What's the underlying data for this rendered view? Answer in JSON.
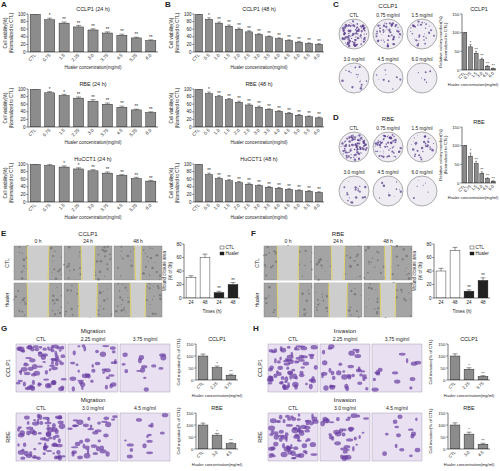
{
  "chart_data": [
    {
      "type": "bar",
      "title": "CCLP1 (24 h)",
      "x_label": "Hualer concentration(mg/ml)",
      "y_label": [
        "Cell viability(%)",
        "(Normalized to CTL)"
      ],
      "categories": [
        "CTL",
        "0.75",
        "1.5",
        "2.25",
        "3.0",
        "3.75",
        "4.5",
        "5.25",
        "6.0"
      ],
      "values": [
        100,
        85,
        76,
        66,
        58,
        50,
        44,
        37,
        30
      ],
      "errors": [
        0,
        4,
        3,
        4,
        3,
        3,
        3,
        2,
        2
      ],
      "annotations": [
        null,
        "*",
        "**",
        "**",
        "**",
        "**",
        "**",
        "**",
        "**"
      ],
      "color": "#8c8c8c",
      "ylim": [
        0,
        100
      ],
      "yticks": [
        0,
        20,
        40,
        60,
        80,
        100
      ]
    },
    {
      "type": "bar",
      "title": "RBE (24 h)",
      "x_label": "Hualer concentration(mg/ml)",
      "y_label": [
        "Cell viability(%)",
        "(Normalized to CTL)"
      ],
      "categories": [
        "CTL",
        "0.75",
        "1.5",
        "2.25",
        "3.0",
        "3.75",
        "4.5",
        "5.25",
        "6.0"
      ],
      "values": [
        100,
        90,
        83,
        76,
        68,
        60,
        52,
        45,
        38
      ],
      "errors": [
        0,
        3,
        3,
        3,
        4,
        3,
        3,
        2,
        2
      ],
      "annotations": [
        null,
        "*",
        "*",
        "**",
        "**",
        "**",
        "**",
        "**",
        "**"
      ],
      "color": "#8c8c8c",
      "ylim": [
        0,
        100
      ],
      "yticks": [
        0,
        20,
        40,
        60,
        80,
        100
      ]
    },
    {
      "type": "bar",
      "title": "HuCCT1 (24 h)",
      "x_label": "Hualer concentration(mg/ml)",
      "y_label": [
        "Cell viability(%)",
        "(Normalized to CTL)"
      ],
      "categories": [
        "CTL",
        "0.75",
        "1.5",
        "2.25",
        "3.0",
        "3.75",
        "4.5",
        "5.25",
        "6.0"
      ],
      "values": [
        100,
        96,
        92,
        87,
        82,
        76,
        70,
        62,
        55
      ],
      "errors": [
        0,
        3,
        3,
        3,
        3,
        3,
        2,
        3,
        2
      ],
      "annotations": [
        null,
        null,
        "*",
        "*",
        "**",
        "**",
        "**",
        "**",
        "**"
      ],
      "color": "#8c8c8c",
      "ylim": [
        0,
        100
      ],
      "yticks": [
        0,
        20,
        40,
        60,
        80,
        100
      ]
    },
    {
      "type": "bar",
      "title": "CCLP1 (48 h)",
      "x_label": "Hualer concentration(mg/ml)",
      "y_label": [
        "Cell viability(%)",
        "(Normalized to CTL)"
      ],
      "categories": [
        "CTL",
        "0.5",
        "1.0",
        "1.5",
        "2.0",
        "2.5",
        "3.0",
        "3.5",
        "4.0",
        "4.5",
        "5.0",
        "5.5",
        "6.0"
      ],
      "values": [
        100,
        86,
        76,
        68,
        60,
        53,
        46,
        40,
        35,
        30,
        26,
        22,
        20
      ],
      "errors": [
        0,
        4,
        3,
        3,
        3,
        3,
        2,
        2,
        2,
        2,
        2,
        2,
        2
      ],
      "annotations": [
        null,
        "*",
        "**",
        "**",
        "**",
        "**",
        "**",
        "**",
        "**",
        "**",
        "**",
        "**",
        "**"
      ],
      "color": "#8c8c8c",
      "ylim": [
        0,
        100
      ],
      "yticks": [
        0,
        20,
        40,
        60,
        80,
        100
      ]
    },
    {
      "type": "bar",
      "title": "RBE (48 h)",
      "x_label": "Hualer concentration(mg/ml)",
      "y_label": [
        "Cell viability(%)",
        "(Normalized to CTL)"
      ],
      "categories": [
        "CTL",
        "0.5",
        "1.0",
        "1.5",
        "2.0",
        "2.5",
        "3.0",
        "3.5",
        "4.0",
        "4.5",
        "5.0",
        "5.5",
        "6.0"
      ],
      "values": [
        100,
        88,
        80,
        72,
        65,
        58,
        52,
        46,
        41,
        36,
        31,
        27,
        24
      ],
      "errors": [
        0,
        4,
        3,
        3,
        3,
        3,
        3,
        2,
        2,
        2,
        2,
        2,
        2
      ],
      "annotations": [
        null,
        "*",
        "**",
        "**",
        "**",
        "**",
        "**",
        "**",
        "**",
        "**",
        "**",
        "**",
        "**"
      ],
      "color": "#8c8c8c",
      "ylim": [
        0,
        100
      ],
      "yticks": [
        0,
        20,
        40,
        60,
        80,
        100
      ]
    },
    {
      "type": "bar",
      "title": "HuCCT1 (48 h)",
      "x_label": "Hualer concentration(mg/ml)",
      "y_label": [
        "Cell viability(%)",
        "(Normalized to CTL)"
      ],
      "categories": [
        "CTL",
        "0.5",
        "1.0",
        "1.5",
        "2.0",
        "2.5",
        "3.0",
        "3.5",
        "4.0",
        "4.5",
        "5.0",
        "5.5",
        "6.0"
      ],
      "values": [
        100,
        72,
        62,
        56,
        51,
        47,
        43,
        39,
        36,
        33,
        30,
        28,
        25
      ],
      "errors": [
        0,
        4,
        3,
        3,
        3,
        3,
        2,
        2,
        2,
        2,
        2,
        2,
        2
      ],
      "annotations": [
        null,
        "**",
        "**",
        "**",
        "**",
        "**",
        "**",
        "**",
        "**",
        "**",
        "**",
        "**",
        "**"
      ],
      "color": "#8c8c8c",
      "ylim": [
        0,
        100
      ],
      "yticks": [
        0,
        20,
        40,
        60,
        80,
        100
      ]
    },
    {
      "type": "bar",
      "title": "CCLP1",
      "x_label": "Hualer concentration(mg/ml)",
      "y_label": [
        "Relative colony number(%)",
        "(Normalized to CTL)"
      ],
      "categories": [
        "CTL",
        "0.75",
        "1.5",
        "3.0",
        "4.5",
        "6.0"
      ],
      "values": [
        100,
        62,
        45,
        28,
        10,
        4
      ],
      "errors": [
        0,
        6,
        5,
        4,
        2,
        1
      ],
      "annotations": [
        null,
        "*",
        "**",
        "**",
        "**",
        "**"
      ],
      "color": "#8c8c8c",
      "ylim": [
        0,
        150
      ],
      "yticks": [
        0,
        50,
        100,
        150
      ]
    },
    {
      "type": "bar",
      "title": "RBE",
      "x_label": "Hualer concentration(mg/ml)",
      "y_label": [
        "Relative colony number(%)",
        "(Normalized to CTL)"
      ],
      "categories": [
        "CTL",
        "0.75",
        "1.5",
        "3.0",
        "4.5",
        "6.0"
      ],
      "values": [
        100,
        72,
        52,
        26,
        12,
        5
      ],
      "errors": [
        0,
        8,
        6,
        4,
        2,
        1
      ],
      "annotations": [
        null,
        "*",
        "**",
        "**",
        "**",
        "**"
      ],
      "color": "#8c8c8c",
      "ylim": [
        0,
        150
      ],
      "yticks": [
        0,
        50,
        100,
        150
      ]
    },
    {
      "type": "bar",
      "x_label": "Times (h)",
      "y_label": [
        "Wound closure area",
        "(% of 0h)"
      ],
      "categories": [
        "24",
        "48",
        "24",
        "48"
      ],
      "series": [
        {
          "name": "CTL",
          "color": "#ffffff",
          "values": [
            30,
            60,
            null,
            null
          ],
          "errors": [
            3,
            5,
            null,
            null
          ]
        },
        {
          "name": "Hualer",
          "color": "#222222",
          "values": [
            null,
            null,
            8,
            20
          ],
          "errors": [
            null,
            null,
            2,
            3
          ],
          "annotations": [
            null,
            null,
            "**",
            "**"
          ]
        }
      ],
      "legend": "upper-right",
      "ylim": [
        0,
        80
      ],
      "yticks": [
        0,
        20,
        40,
        60,
        80
      ]
    },
    {
      "type": "bar",
      "x_label": "Times (h)",
      "y_label": [
        "Wound closure area",
        "(% of 0h)"
      ],
      "categories": [
        "24",
        "48",
        "24",
        "48"
      ],
      "series": [
        {
          "name": "CTL",
          "color": "#ffffff",
          "values": [
            40,
            70,
            null,
            null
          ],
          "errors": [
            4,
            5,
            null,
            null
          ]
        },
        {
          "name": "Hualer",
          "color": "#222222",
          "values": [
            null,
            null,
            10,
            26
          ],
          "errors": [
            null,
            null,
            2,
            4
          ],
          "annotations": [
            null,
            null,
            "**",
            "**"
          ]
        }
      ],
      "legend": "upper-right",
      "ylim": [
        0,
        80
      ],
      "yticks": [
        0,
        20,
        40,
        60,
        80
      ]
    },
    {
      "type": "bar",
      "title": "CCLP1",
      "x_label": "Hualer concentration(mg/ml)",
      "y_label": [
        "Cell migration(% of CTL)"
      ],
      "categories": [
        "CTL",
        "2.25",
        "3.75"
      ],
      "values": [
        100,
        52,
        20
      ],
      "errors": [
        8,
        6,
        4
      ],
      "annotations": [
        null,
        "*",
        "**"
      ],
      "color": "#8c8c8c",
      "ylim": [
        0,
        150
      ],
      "yticks": [
        0,
        50,
        100,
        150
      ]
    },
    {
      "type": "bar",
      "title": "RBE",
      "x_label": "Hualer concentration(mg/ml)",
      "y_label": [
        "Cell migration(% of CTL)"
      ],
      "categories": [
        "CTL",
        "3.0",
        "4.5"
      ],
      "values": [
        100,
        58,
        22
      ],
      "errors": [
        8,
        7,
        4
      ],
      "annotations": [
        null,
        "*",
        "**"
      ],
      "color": "#8c8c8c",
      "ylim": [
        0,
        150
      ],
      "yticks": [
        0,
        50,
        100,
        150
      ]
    },
    {
      "type": "bar",
      "title": "CCLP1",
      "x_label": "Hualer concentration(mg/ml)",
      "y_label": [
        "Cell invasion(% of CTL)"
      ],
      "categories": [
        "CTL",
        "2.25",
        "3.75"
      ],
      "values": [
        100,
        45,
        15
      ],
      "errors": [
        9,
        6,
        3
      ],
      "annotations": [
        null,
        "*",
        "**"
      ],
      "color": "#8c8c8c",
      "ylim": [
        0,
        150
      ],
      "yticks": [
        0,
        50,
        100,
        150
      ]
    },
    {
      "type": "bar",
      "title": "RBE",
      "x_label": "Hualer concentration(mg/ml)",
      "y_label": [
        "Cell invasion(% of CTL)"
      ],
      "categories": [
        "CTL",
        "3.0",
        "4.5"
      ],
      "values": [
        100,
        62,
        20
      ],
      "errors": [
        9,
        8,
        4
      ],
      "annotations": [
        null,
        "*",
        "**"
      ],
      "color": "#8c8c8c",
      "ylim": [
        0,
        150
      ],
      "yticks": [
        0,
        50,
        100,
        150
      ]
    }
  ],
  "figure": {
    "panel_labels": [
      "A",
      "B",
      "C",
      "D",
      "E",
      "F",
      "G",
      "H"
    ],
    "colony": [
      {
        "cell": "CCLP1",
        "wells": [
          "CTL",
          "0.75 mg/ml",
          "1.5 mg/ml",
          "3.0 mg/ml",
          "4.5 mg/ml",
          "6.0 mg/ml"
        ]
      },
      {
        "cell": "RBE",
        "wells": [
          "CTL",
          "0.75 mg/ml",
          "1.5 mg/ml",
          "3.0 mg/ml",
          "4.5 mg/ml",
          "6.0 mg/ml"
        ]
      }
    ],
    "wound": [
      {
        "cell": "CCLP1",
        "times": [
          "0 h",
          "24 h",
          "48 h"
        ],
        "groups": [
          "CTL",
          "Hualer"
        ]
      },
      {
        "cell": "RBE",
        "times": [
          "0 h",
          "24 h",
          "48 h"
        ],
        "groups": [
          "CTL",
          "Hualer"
        ]
      }
    ],
    "transwell": [
      {
        "assay": "Migration",
        "rows": [
          {
            "cell": "CCLP1",
            "doses": [
              "CTL",
              "2.25 mg/ml",
              "3.75 mg/ml"
            ]
          },
          {
            "cell": "RBE",
            "doses": [
              "CTL",
              "3.0 mg/ml",
              "4.5 mg/ml"
            ]
          }
        ]
      },
      {
        "assay": "Invasion",
        "rows": [
          {
            "cell": "CCLP1",
            "doses": [
              "CTL",
              "2.25 mg/ml",
              "3.75 mg/ml"
            ]
          },
          {
            "cell": "RBE",
            "doses": [
              "CTL",
              "3.0 mg/ml",
              "4.5 mg/ml"
            ]
          }
        ]
      }
    ]
  }
}
